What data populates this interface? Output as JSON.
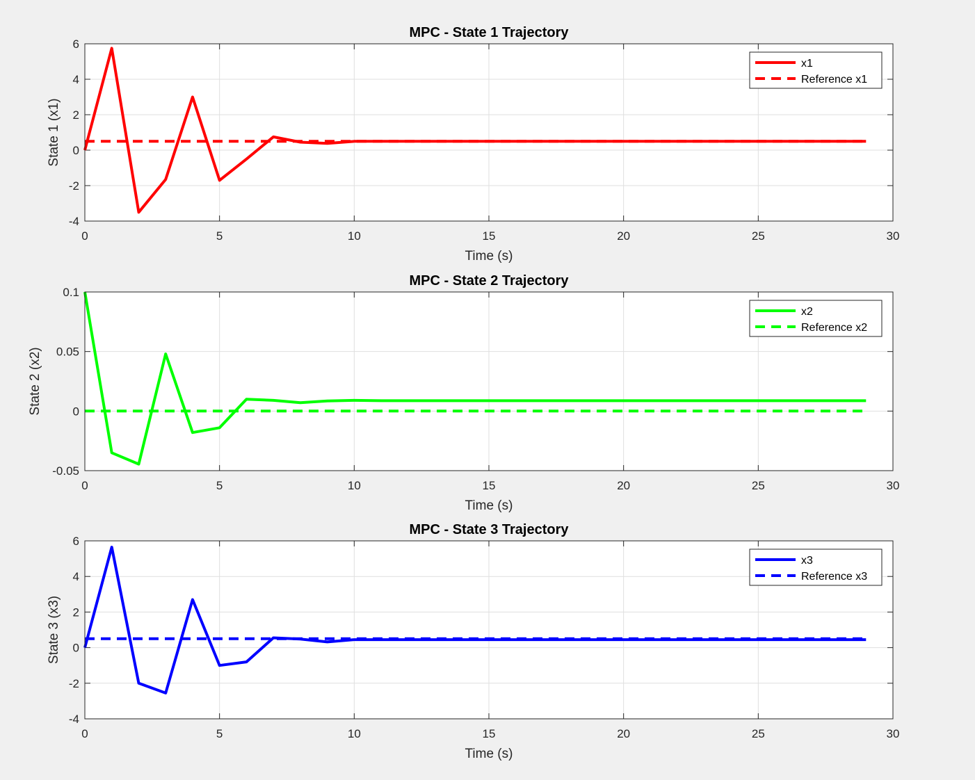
{
  "chart_data": [
    {
      "type": "line",
      "title": "MPC - State 1 Trajectory",
      "xlabel": "Time (s)",
      "ylabel": "State 1 (x1)",
      "xlim": [
        0,
        30
      ],
      "ylim": [
        -4,
        6
      ],
      "xticks": [
        0,
        5,
        10,
        15,
        20,
        25,
        30
      ],
      "yticks": [
        -4,
        -2,
        0,
        2,
        4,
        6
      ],
      "ytick_labels": [
        "-4",
        "-2",
        "0",
        "2",
        "4",
        "6"
      ],
      "grid": true,
      "legend_position": "top-right",
      "color": "#ff0000",
      "x": [
        0,
        1,
        2,
        3,
        4,
        5,
        6,
        7,
        8,
        9,
        10,
        11,
        12,
        13,
        14,
        15,
        16,
        17,
        18,
        19,
        20,
        21,
        22,
        23,
        24,
        25,
        26,
        27,
        28,
        29
      ],
      "series": [
        {
          "name": "x1",
          "style": "solid",
          "values": [
            0,
            5.75,
            -3.5,
            -1.65,
            3.0,
            -1.7,
            -0.5,
            0.75,
            0.45,
            0.38,
            0.5,
            0.5,
            0.5,
            0.5,
            0.5,
            0.5,
            0.5,
            0.5,
            0.5,
            0.5,
            0.5,
            0.5,
            0.5,
            0.5,
            0.5,
            0.5,
            0.5,
            0.5,
            0.5,
            0.5
          ]
        },
        {
          "name": "Reference x1",
          "style": "dashed",
          "values": [
            0.5,
            0.5,
            0.5,
            0.5,
            0.5,
            0.5,
            0.5,
            0.5,
            0.5,
            0.5,
            0.5,
            0.5,
            0.5,
            0.5,
            0.5,
            0.5,
            0.5,
            0.5,
            0.5,
            0.5,
            0.5,
            0.5,
            0.5,
            0.5,
            0.5,
            0.5,
            0.5,
            0.5,
            0.5,
            0.5
          ]
        }
      ]
    },
    {
      "type": "line",
      "title": "MPC - State 2 Trajectory",
      "xlabel": "Time (s)",
      "ylabel": "State 2 (x2)",
      "xlim": [
        0,
        30
      ],
      "ylim": [
        -0.05,
        0.1
      ],
      "xticks": [
        0,
        5,
        10,
        15,
        20,
        25,
        30
      ],
      "yticks": [
        -0.05,
        0,
        0.05,
        0.1
      ],
      "ytick_labels": [
        "-0.05",
        "0",
        "0.05",
        "0.1"
      ],
      "grid": true,
      "legend_position": "top-right",
      "color": "#00ff00",
      "x": [
        0,
        1,
        2,
        3,
        4,
        5,
        6,
        7,
        8,
        9,
        10,
        11,
        12,
        13,
        14,
        15,
        16,
        17,
        18,
        19,
        20,
        21,
        22,
        23,
        24,
        25,
        26,
        27,
        28,
        29
      ],
      "series": [
        {
          "name": "x2",
          "style": "solid",
          "values": [
            0.1,
            -0.035,
            -0.0445,
            0.048,
            -0.018,
            -0.014,
            0.01,
            0.009,
            0.007,
            0.0085,
            0.009,
            0.0087,
            0.0087,
            0.0087,
            0.0087,
            0.0087,
            0.0087,
            0.0087,
            0.0087,
            0.0087,
            0.0087,
            0.0087,
            0.0087,
            0.0087,
            0.0087,
            0.0087,
            0.0087,
            0.0087,
            0.0087,
            0.0087
          ]
        },
        {
          "name": "Reference x2",
          "style": "dashed",
          "values": [
            0,
            0,
            0,
            0,
            0,
            0,
            0,
            0,
            0,
            0,
            0,
            0,
            0,
            0,
            0,
            0,
            0,
            0,
            0,
            0,
            0,
            0,
            0,
            0,
            0,
            0,
            0,
            0,
            0,
            0
          ]
        }
      ]
    },
    {
      "type": "line",
      "title": "MPC - State 3 Trajectory",
      "xlabel": "Time (s)",
      "ylabel": "State 3 (x3)",
      "xlim": [
        0,
        30
      ],
      "ylim": [
        -4,
        6
      ],
      "xticks": [
        0,
        5,
        10,
        15,
        20,
        25,
        30
      ],
      "yticks": [
        -4,
        -2,
        0,
        2,
        4,
        6
      ],
      "ytick_labels": [
        "-4",
        "-2",
        "0",
        "2",
        "4",
        "6"
      ],
      "grid": true,
      "legend_position": "top-right",
      "color": "#0000ff",
      "x": [
        0,
        1,
        2,
        3,
        4,
        5,
        6,
        7,
        8,
        9,
        10,
        11,
        12,
        13,
        14,
        15,
        16,
        17,
        18,
        19,
        20,
        21,
        22,
        23,
        24,
        25,
        26,
        27,
        28,
        29
      ],
      "series": [
        {
          "name": "x3",
          "style": "solid",
          "values": [
            0,
            5.65,
            -2.0,
            -2.55,
            2.7,
            -1.0,
            -0.8,
            0.55,
            0.48,
            0.32,
            0.45,
            0.45,
            0.45,
            0.45,
            0.45,
            0.45,
            0.45,
            0.45,
            0.45,
            0.45,
            0.45,
            0.45,
            0.45,
            0.45,
            0.45,
            0.45,
            0.45,
            0.45,
            0.45,
            0.45
          ]
        },
        {
          "name": "Reference x3",
          "style": "dashed",
          "values": [
            0.5,
            0.5,
            0.5,
            0.5,
            0.5,
            0.5,
            0.5,
            0.5,
            0.5,
            0.5,
            0.5,
            0.5,
            0.5,
            0.5,
            0.5,
            0.5,
            0.5,
            0.5,
            0.5,
            0.5,
            0.5,
            0.5,
            0.5,
            0.5,
            0.5,
            0.5,
            0.5,
            0.5,
            0.5,
            0.5
          ]
        }
      ]
    }
  ]
}
